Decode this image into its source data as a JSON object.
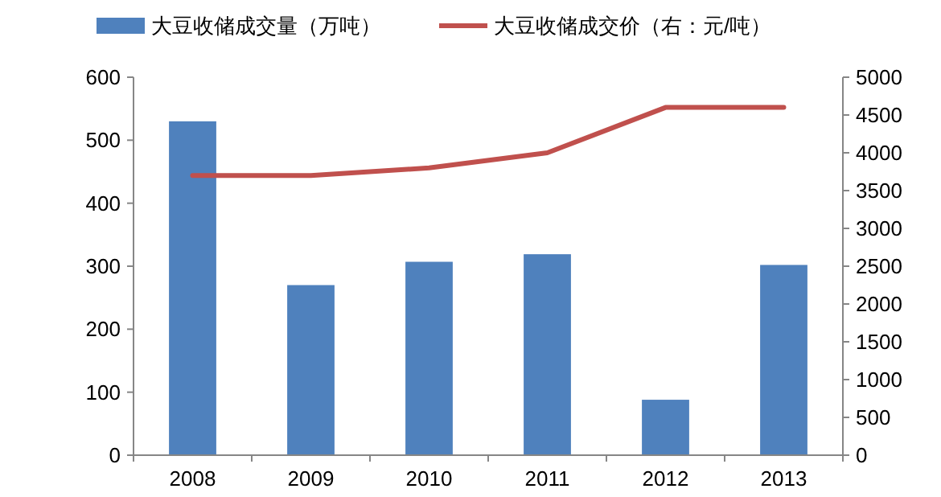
{
  "chart_data": {
    "type": "bar",
    "categories": [
      "2008",
      "2009",
      "2010",
      "2011",
      "2012",
      "2013"
    ],
    "series": [
      {
        "name": "大豆收储成交量（万吨）",
        "color": "#4f81bd",
        "values": [
          530,
          270,
          307,
          319,
          88,
          302
        ]
      },
      {
        "name": "大豆收储成交价（右：元/吨）",
        "type": "line",
        "axis": "y2",
        "color": "#c0504d",
        "values": [
          3700,
          3700,
          3800,
          4000,
          4600,
          4600
        ]
      }
    ],
    "ylim": [
      0,
      600
    ],
    "yticks": [
      0,
      100,
      200,
      300,
      400,
      500,
      600
    ],
    "y2lim": [
      0,
      5000
    ],
    "y2ticks": [
      0,
      500,
      1000,
      1500,
      2000,
      2500,
      3000,
      3500,
      4000,
      4500,
      5000
    ],
    "legend": "top",
    "grid": false
  }
}
